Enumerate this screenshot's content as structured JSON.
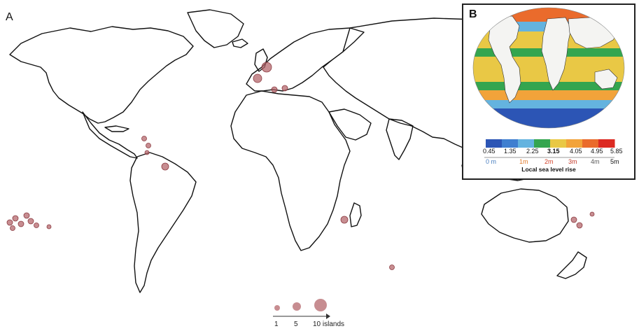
{
  "panel_a": {
    "label": "A"
  },
  "panel_b": {
    "label": "B",
    "scale_ticks": [
      "0.45",
      "1.35",
      "2.25",
      "3.15",
      "4.05",
      "4.95",
      "5.85"
    ],
    "meter_ticks": [
      "0 m",
      "1m",
      "2m",
      "3m",
      "4m",
      "5m"
    ],
    "title": "Local sea level rise",
    "colors": [
      "#2c55b5",
      "#3f7fd0",
      "#64b3df",
      "#34a54f",
      "#e9c845",
      "#f2a33a",
      "#ea6b2c",
      "#dc2a22"
    ]
  },
  "legend": {
    "values": [
      "1",
      "5",
      "10 islands"
    ]
  },
  "marker_color": "#b26166"
}
